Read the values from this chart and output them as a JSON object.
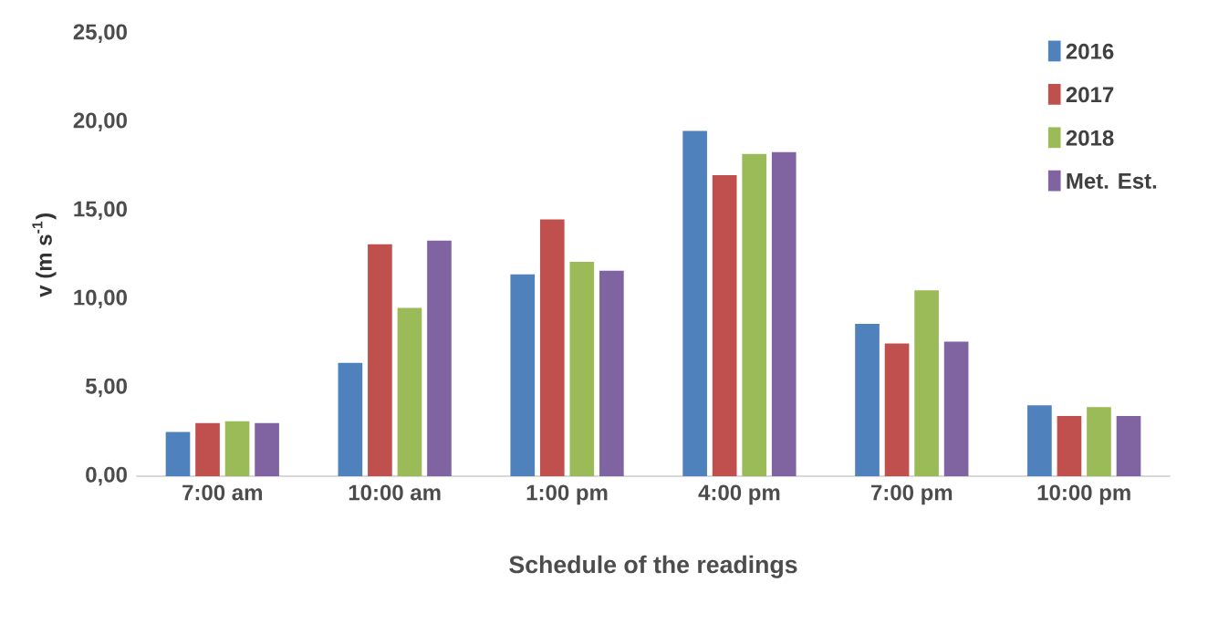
{
  "chart_data": {
    "type": "bar",
    "xlabel": "Schedule of the readings",
    "ylabel": "v (m s$^{-1}$)",
    "categories": [
      "7:00 am",
      "10:00 am",
      "1:00 pm",
      "4:00 pm",
      "7:00 pm",
      "10:00 pm"
    ],
    "series": [
      {
        "name": "2016",
        "color": "#4f81bd",
        "values": [
          2.5,
          6.4,
          11.4,
          19.5,
          8.6,
          4.0
        ]
      },
      {
        "name": "2017",
        "color": "#c0504d",
        "values": [
          3.0,
          13.1,
          14.5,
          17.0,
          7.5,
          3.4
        ]
      },
      {
        "name": "2018",
        "color": "#9bbb59",
        "values": [
          3.1,
          9.5,
          12.1,
          18.2,
          10.5,
          3.9
        ]
      },
      {
        "name": "Met. Est.",
        "color": "#8064a2",
        "values": [
          3.0,
          13.3,
          11.6,
          18.3,
          7.6,
          3.4
        ]
      }
    ],
    "ylim": [
      0,
      25
    ],
    "yticks": [
      {
        "value": 0,
        "label": "0,00"
      },
      {
        "value": 5,
        "label": "5,00"
      },
      {
        "value": 10,
        "label": "10,00"
      },
      {
        "value": 15,
        "label": "15,00"
      },
      {
        "value": 20,
        "label": "20,00"
      },
      {
        "value": 25,
        "label": "25,00"
      }
    ],
    "legend": "top right",
    "grid": false
  }
}
